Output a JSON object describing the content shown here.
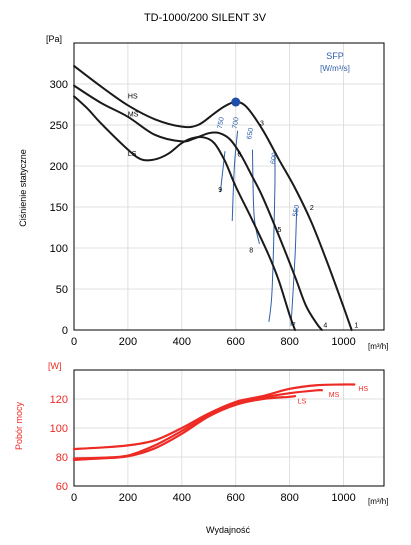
{
  "title": "TD-1000/200 SILENT 3V",
  "footer_label": "Wydajność",
  "colors": {
    "curve": "#1a1a1a",
    "sfp": "#2f5faa",
    "power": "#ee2a24",
    "point": "#1f4fa8",
    "grid": "#d9d9d9",
    "axis": "#000000"
  },
  "chart_data": [
    {
      "type": "line",
      "ylabel": "Ciśnienie statyczne",
      "yunit": "[Pa]",
      "xunit": "[m³/h]",
      "xlim": [
        0,
        1150
      ],
      "ylim": [
        0,
        350
      ],
      "xticks": [
        0,
        200,
        400,
        600,
        800,
        1000
      ],
      "yticks": [
        0,
        50,
        100,
        150,
        200,
        250,
        300
      ],
      "xtick_labels": [
        "0",
        "200",
        "400",
        "600",
        "800",
        "1000"
      ],
      "ytick_labels": [
        "0",
        "50",
        "100",
        "150",
        "200",
        "250",
        "300"
      ],
      "legend_title": "SFP",
      "legend_unit": "[W/m³/s]",
      "series": [
        {
          "name": "HS",
          "x": [
            0,
            100,
            200,
            300,
            400,
            460,
            520,
            560,
            600,
            640,
            700,
            760,
            820,
            880,
            940,
            1000,
            1030
          ],
          "y": [
            322,
            297,
            274,
            257,
            248,
            250,
            264,
            273,
            278,
            272,
            244,
            208,
            173,
            132,
            82,
            28,
            0
          ]
        },
        {
          "name": "MS",
          "x": [
            0,
            100,
            200,
            300,
            400,
            450,
            500,
            540,
            580,
            620,
            660,
            700,
            760,
            820,
            860,
            900,
            920
          ],
          "y": [
            298,
            277,
            260,
            238,
            230,
            234,
            240,
            240,
            232,
            213,
            188,
            162,
            115,
            65,
            30,
            8,
            0
          ]
        },
        {
          "name": "LS",
          "x": [
            0,
            50,
            100,
            200,
            250,
            300,
            350,
            400,
            440,
            480,
            520,
            560,
            600,
            660,
            720,
            760,
            800,
            820
          ],
          "y": [
            285,
            270,
            252,
            220,
            208,
            208,
            215,
            228,
            234,
            235,
            228,
            206,
            175,
            135,
            93,
            60,
            18,
            0
          ]
        }
      ],
      "curve_labels": [
        {
          "text": "HS",
          "x": 200,
          "y": 286
        },
        {
          "text": "MS",
          "x": 200,
          "y": 264
        },
        {
          "text": "LS",
          "x": 200,
          "y": 216
        }
      ],
      "point_labels": [
        {
          "text": "1",
          "x": 1040,
          "y": 7
        },
        {
          "text": "2",
          "x": 875,
          "y": 150
        },
        {
          "text": "3",
          "x": 690,
          "y": 253
        },
        {
          "text": "4",
          "x": 925,
          "y": 7
        },
        {
          "text": "5",
          "x": 755,
          "y": 123
        },
        {
          "text": "6",
          "x": 606,
          "y": 215
        },
        {
          "text": "7",
          "x": 808,
          "y": 7
        },
        {
          "text": "8",
          "x": 650,
          "y": 98
        },
        {
          "text": "9",
          "x": 535,
          "y": 172
        }
      ],
      "sfp_lines": [
        {
          "label": "750",
          "points": [
            [
              560,
              218
            ],
            [
              543,
              168
            ]
          ],
          "label_at": [
            548,
            245
          ]
        },
        {
          "label": "700",
          "points": [
            [
              607,
              243
            ],
            [
              595,
              200
            ],
            [
              587,
              133
            ]
          ],
          "label_at": [
            603,
            245
          ]
        },
        {
          "label": "650",
          "points": [
            [
              662,
              220
            ],
            [
              668,
              140
            ],
            [
              688,
              105
            ]
          ],
          "label_at": [
            657,
            232
          ]
        },
        {
          "label": "600",
          "points": [
            [
              745,
              215
            ],
            [
              745,
              170
            ],
            [
              735,
              50
            ],
            [
              723,
              10
            ]
          ],
          "label_at": [
            745,
            202
          ]
        },
        {
          "label": "550",
          "points": [
            [
              826,
              148
            ],
            [
              820,
              90
            ],
            [
              805,
              5
            ]
          ],
          "label_at": [
            828,
            138
          ]
        }
      ],
      "operating_point": {
        "x": 600,
        "y": 278
      }
    },
    {
      "type": "line",
      "ylabel": "Pobór mocy",
      "yunit": "[W]",
      "xunit": "[m³/h]",
      "xlim": [
        0,
        1150
      ],
      "ylim": [
        60,
        140
      ],
      "xticks": [
        0,
        200,
        400,
        600,
        800,
        1000
      ],
      "yticks": [
        60,
        80,
        100,
        120
      ],
      "xtick_labels": [
        "0",
        "200",
        "400",
        "600",
        "800",
        "1000"
      ],
      "ytick_labels": [
        "60",
        "80",
        "100",
        "120"
      ],
      "series": [
        {
          "name": "HS",
          "x": [
            0,
            100,
            200,
            300,
            400,
            500,
            600,
            700,
            800,
            900,
            1000,
            1040
          ],
          "y": [
            85.5,
            86.5,
            88,
            91.5,
            100,
            110,
            118,
            122,
            127,
            129.5,
            130,
            130
          ]
        },
        {
          "name": "MS",
          "x": [
            0,
            100,
            200,
            300,
            400,
            500,
            600,
            700,
            800,
            900,
            920
          ],
          "y": [
            79,
            79.5,
            81,
            88,
            98,
            109,
            117,
            121,
            124,
            126,
            126
          ]
        },
        {
          "name": "LS",
          "x": [
            0,
            100,
            200,
            300,
            400,
            500,
            600,
            700,
            800,
            820
          ],
          "y": [
            78,
            79,
            80.5,
            86,
            96,
            108,
            116,
            120,
            121.5,
            122
          ]
        }
      ],
      "curve_labels": [
        {
          "text": "HS",
          "x": 1055,
          "y": 127.5
        },
        {
          "text": "MS",
          "x": 945,
          "y": 123.5
        },
        {
          "text": "LS",
          "x": 830,
          "y": 119
        }
      ]
    }
  ]
}
